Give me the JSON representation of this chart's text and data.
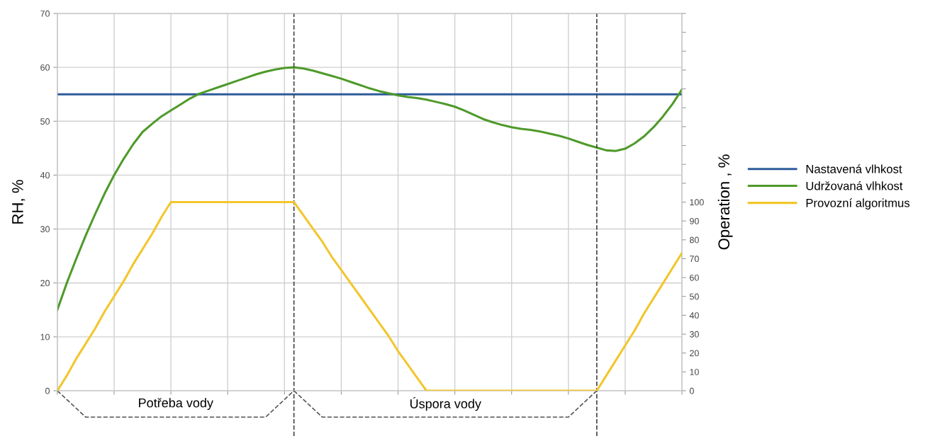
{
  "chart_data": {
    "type": "line",
    "ylabel": "RH, %",
    "y2label": "Operation , %",
    "categories": [
      null,
      null,
      null,
      null,
      null,
      null,
      null,
      null,
      null,
      null,
      null,
      null,
      null,
      null,
      null,
      null,
      null,
      null,
      null,
      null,
      null,
      null,
      null,
      null,
      null,
      null,
      null,
      null,
      null,
      null,
      null,
      null,
      null,
      null,
      null,
      null,
      null,
      null,
      null,
      null,
      null,
      null,
      null,
      null,
      null,
      null,
      null,
      null,
      null,
      null,
      null,
      null,
      null,
      null,
      null,
      null,
      null,
      null,
      null,
      null,
      null,
      null,
      null,
      null,
      null,
      null,
      null
    ],
    "ylim": [
      0,
      70
    ],
    "yticks": [
      0,
      10,
      20,
      30,
      40,
      50,
      60,
      70
    ],
    "y2lim": [
      0,
      200
    ],
    "y2ticks": [
      0,
      10,
      20,
      30,
      40,
      50,
      60,
      70,
      80,
      90,
      100,
      {
        "value": 110,
        "label": null
      },
      {
        "value": 120,
        "label": null
      },
      {
        "value": 130,
        "label": null
      },
      {
        "value": 140,
        "label": null
      },
      {
        "value": 150,
        "label": null
      },
      {
        "value": 160,
        "label": null
      },
      {
        "value": 170,
        "label": null
      },
      {
        "value": 180,
        "label": null
      },
      {
        "value": 190,
        "label": null
      },
      {
        "value": 200,
        "label": null
      }
    ],
    "grid": true,
    "legend": "right",
    "marker": "none",
    "line_style": "solid",
    "series": [
      {
        "name": "Nastavená vlhkost",
        "color": "#2e5b9a",
        "values": [
          55,
          55,
          55,
          55,
          55,
          55,
          55,
          55,
          55,
          55,
          55,
          55,
          55,
          55,
          55,
          55,
          55,
          55,
          55,
          55,
          55,
          55,
          55,
          55,
          55,
          55,
          55,
          55,
          55,
          55,
          55,
          55,
          55,
          55,
          55,
          55,
          55,
          55,
          55,
          55,
          55,
          55,
          55,
          55,
          55,
          55,
          55,
          55,
          55,
          55,
          55,
          55,
          55,
          55,
          55,
          55,
          55,
          55,
          55,
          55,
          55,
          55,
          55,
          55,
          55,
          55,
          55
        ]
      },
      {
        "name": "Udržovaná vlhkost",
        "color": "#4e9a2a",
        "values": [
          15,
          20,
          24.5,
          28.8,
          32.8,
          36.6,
          40,
          43,
          45.7,
          48,
          49.5,
          50.9,
          52,
          53.1,
          54.2,
          55.1,
          55.7,
          56.3,
          56.9,
          57.5,
          58.1,
          58.7,
          59.2,
          59.6,
          59.9,
          60,
          59.8,
          59.4,
          58.9,
          58.4,
          57.9,
          57.3,
          56.7,
          56.1,
          55.6,
          55.2,
          54.8,
          54.5,
          54.3,
          54,
          53.6,
          53.2,
          52.7,
          52,
          51.2,
          50.4,
          49.8,
          49.3,
          48.9,
          48.6,
          48.4,
          48.1,
          47.7,
          47.3,
          46.8,
          46.2,
          45.6,
          45.1,
          44.6,
          44.5,
          44.9,
          45.9,
          47.2,
          48.9,
          50.9,
          53.2,
          55.9
        ]
      },
      {
        "name": "Provozní algoritmus",
        "color": "#f2c62c",
        "axis": "y2",
        "values": [
          0,
          8,
          17,
          25,
          33,
          42,
          50,
          58,
          67,
          75,
          83,
          92,
          100,
          100,
          100,
          100,
          100,
          100,
          100,
          100,
          100,
          100,
          100,
          100,
          100,
          100,
          93,
          86,
          79,
          71,
          64,
          57,
          50,
          43,
          36,
          29,
          21,
          14,
          7,
          0,
          0,
          0,
          0,
          0,
          0,
          0,
          0,
          0,
          0,
          0,
          0,
          0,
          0,
          0,
          0,
          0,
          0,
          0,
          8,
          16,
          24,
          32,
          41,
          49,
          57,
          65,
          73
        ]
      }
    ],
    "annotations": [
      "Potřeba vody",
      "Úspora vody"
    ]
  }
}
